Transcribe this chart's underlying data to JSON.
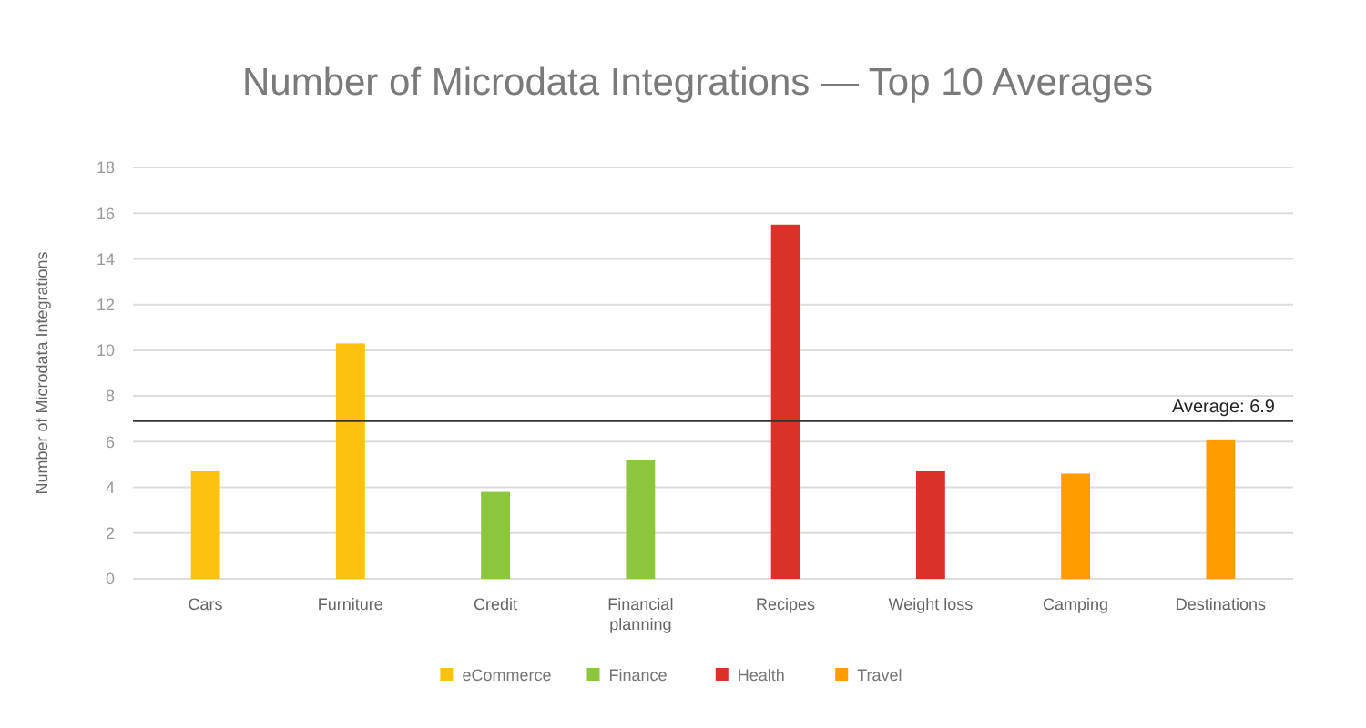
{
  "chart_data": {
    "type": "bar",
    "title": "Number of Microdata Integrations — Top 10 Averages",
    "ylabel": "Number of Microdata Integrations",
    "categories": [
      "Cars",
      "Furniture",
      "Credit",
      "Financial planning",
      "Recipes",
      "Weight loss",
      "Camping",
      "Destinations"
    ],
    "stacked": true,
    "series": [
      {
        "name": "eCommerce",
        "color": "#fcc20f",
        "values": [
          4.7,
          10.3,
          null,
          null,
          null,
          null,
          null,
          null
        ]
      },
      {
        "name": "Finance",
        "color": "#8cc63e",
        "values": [
          null,
          null,
          3.8,
          5.2,
          null,
          null,
          null,
          null
        ]
      },
      {
        "name": "Health",
        "color": "#dc3128",
        "values": [
          null,
          null,
          null,
          null,
          15.5,
          4.7,
          null,
          null
        ]
      },
      {
        "name": "Travel",
        "color": "#ff9c00",
        "values": [
          null,
          null,
          null,
          null,
          null,
          null,
          4.6,
          6.1
        ]
      }
    ],
    "ylim": [
      0,
      18
    ],
    "yticks": [
      0,
      2,
      4,
      6,
      8,
      10,
      12,
      14,
      16,
      18
    ],
    "grid": "y",
    "legend": "bottom",
    "ref_lines": [
      {
        "axis": "y",
        "value": 6.9,
        "label": "Average: 6.9",
        "color": "#333333"
      }
    ]
  }
}
